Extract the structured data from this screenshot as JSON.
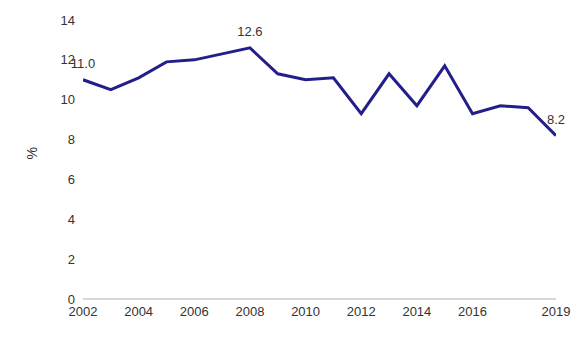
{
  "chart_data": {
    "type": "line",
    "y_label": "%",
    "x": [
      2002,
      2003,
      2004,
      2005,
      2006,
      2007,
      2008,
      2009,
      2010,
      2011,
      2012,
      2013,
      2014,
      2015,
      2016,
      2017,
      2018,
      2019
    ],
    "values": [
      11.0,
      10.5,
      11.1,
      11.9,
      12.0,
      12.3,
      12.6,
      11.3,
      11.0,
      11.1,
      9.3,
      11.3,
      9.7,
      11.7,
      9.3,
      9.7,
      9.6,
      8.2
    ],
    "value_labels": [
      "11.0",
      null,
      null,
      null,
      null,
      null,
      "12.6",
      null,
      null,
      null,
      null,
      null,
      null,
      null,
      null,
      null,
      null,
      "8.2"
    ],
    "data_labels": true,
    "color": "#231f8a",
    "xlim": [
      2002,
      2019
    ],
    "xticks": [
      2002,
      2004,
      2006,
      2008,
      2010,
      2012,
      2014,
      2016,
      2019
    ],
    "ylim": [
      0,
      14
    ],
    "yticks": [
      0,
      2,
      4,
      6,
      8,
      10,
      12,
      14
    ],
    "grid": false
  }
}
